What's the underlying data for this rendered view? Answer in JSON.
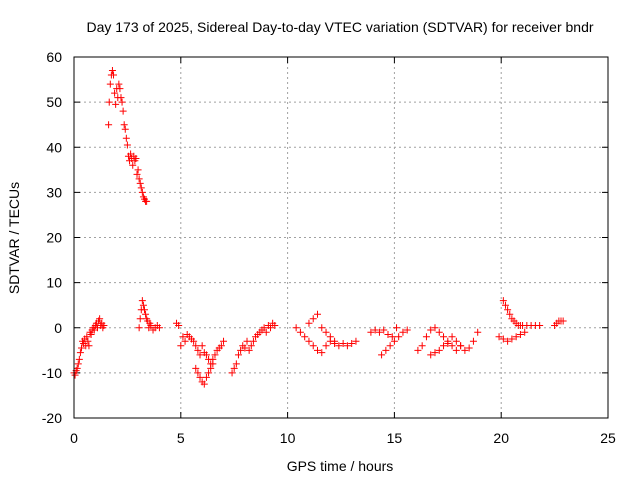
{
  "chart_data": {
    "type": "scatter",
    "title": "Day 173 of 2025, Sidereal Day-to-day VTEC variation (SDTVAR) for receiver bndr",
    "xlabel": "GPS time / hours",
    "ylabel": "SDTVAR / TECUs",
    "xlim": [
      0,
      25
    ],
    "ylim": [
      -20,
      60
    ],
    "xticks": [
      0,
      5,
      10,
      15,
      20,
      25
    ],
    "yticks": [
      -20,
      -10,
      0,
      10,
      20,
      30,
      40,
      50,
      60
    ],
    "grid": true,
    "marker": "+",
    "color": "#ff0000",
    "series": [
      {
        "name": "SDTVAR",
        "x": [
          0.0,
          0.05,
          0.1,
          0.15,
          0.2,
          0.25,
          0.3,
          0.35,
          0.4,
          0.45,
          0.5,
          0.55,
          0.6,
          0.65,
          0.7,
          0.75,
          0.8,
          0.85,
          0.9,
          0.95,
          1.0,
          1.05,
          1.1,
          1.15,
          1.2,
          1.25,
          1.3,
          1.35,
          1.4,
          1.62,
          1.65,
          1.7,
          1.75,
          1.8,
          1.85,
          1.9,
          1.95,
          2.0,
          2.05,
          2.1,
          2.15,
          2.2,
          2.25,
          2.3,
          2.35,
          2.4,
          2.45,
          2.5,
          2.55,
          2.6,
          2.65,
          2.7,
          2.75,
          2.8,
          2.85,
          2.9,
          2.95,
          3.0,
          3.05,
          3.1,
          3.15,
          3.2,
          3.25,
          3.3,
          3.35,
          3.4,
          3.05,
          3.1,
          3.15,
          3.2,
          3.25,
          3.3,
          3.35,
          3.4,
          3.45,
          3.5,
          3.55,
          3.6,
          3.7,
          3.8,
          3.9,
          4.0,
          4.8,
          4.9,
          5.0,
          5.1,
          5.2,
          5.3,
          5.4,
          5.5,
          5.6,
          5.7,
          5.8,
          5.9,
          6.0,
          6.1,
          6.2,
          6.3,
          6.4,
          6.5,
          6.6,
          6.7,
          6.8,
          6.9,
          7.0,
          5.7,
          5.8,
          5.9,
          6.0,
          6.1,
          6.2,
          6.3,
          6.4,
          6.5,
          7.4,
          7.5,
          7.6,
          7.7,
          7.8,
          7.9,
          8.0,
          8.1,
          8.2,
          8.3,
          8.4,
          8.5,
          8.6,
          8.7,
          8.8,
          8.9,
          9.0,
          9.1,
          9.2,
          9.3,
          9.4,
          10.4,
          10.6,
          10.8,
          11.0,
          11.2,
          11.4,
          11.6,
          11.8,
          12.0,
          12.2,
          12.4,
          12.6,
          12.8,
          13.0,
          13.2,
          11.0,
          11.2,
          11.4,
          11.6,
          11.8,
          12.0,
          12.2,
          13.9,
          14.1,
          14.3,
          14.5,
          14.7,
          14.9,
          15.1,
          14.4,
          14.6,
          14.8,
          15.0,
          15.2,
          15.4,
          15.6,
          16.1,
          16.3,
          16.5,
          16.7,
          16.9,
          17.1,
          17.3,
          17.5,
          17.7,
          17.9,
          18.1,
          16.7,
          16.9,
          17.1,
          17.3,
          17.5,
          17.7,
          17.9,
          18.1,
          18.3,
          18.5,
          18.7,
          18.9,
          19.9,
          20.1,
          20.3,
          20.5,
          20.7,
          20.9,
          21.1,
          20.1,
          20.2,
          20.3,
          20.4,
          20.5,
          20.6,
          20.7,
          20.8,
          20.9,
          21.0,
          21.2,
          21.4,
          21.6,
          21.8,
          22.5,
          22.6,
          22.7,
          22.8,
          22.9
        ],
        "y": [
          -10,
          -10.5,
          -9.5,
          -9,
          -8,
          -7,
          -5.5,
          -4.5,
          -3,
          -3.5,
          -2.5,
          -4,
          -2,
          -3,
          -4,
          -1,
          -1.5,
          -0.5,
          0,
          -0.5,
          0.5,
          1,
          0,
          1.5,
          2,
          0.5,
          1,
          0,
          0.5,
          45,
          50,
          54,
          56,
          57,
          56,
          52,
          49.5,
          53,
          51,
          54,
          53,
          51,
          50,
          48,
          45,
          44,
          42,
          40.5,
          38,
          37,
          38.5,
          37.5,
          36,
          38,
          37,
          37.5,
          34,
          35,
          33,
          32,
          31,
          30,
          29,
          28.5,
          28,
          28,
          0,
          2,
          4,
          6,
          5,
          4,
          3,
          2,
          1.5,
          0,
          1,
          0.5,
          -0.5,
          0,
          0.5,
          0,
          1,
          0.5,
          -4,
          -2,
          -3,
          -1.5,
          -2,
          -2.5,
          -3,
          -4,
          -5,
          -6,
          -4,
          -5.5,
          -6,
          -7,
          -8,
          -7,
          -6,
          -5,
          -4.5,
          -4,
          -3,
          -9,
          -10,
          -11,
          -12,
          -12.5,
          -11,
          -10,
          -9,
          -8,
          -10,
          -9,
          -8,
          -6,
          -5,
          -4,
          -4.5,
          -3,
          -5,
          -4,
          -3,
          -2,
          -1.5,
          -1,
          -0.5,
          0,
          -1,
          0.5,
          0,
          1,
          0.5,
          0,
          -1,
          -2,
          -3,
          -4,
          -5,
          -5.5,
          -4,
          -3,
          -3.5,
          -4,
          -3.5,
          -4,
          -3.5,
          -3,
          1,
          2,
          3,
          0,
          -1,
          -2,
          -3,
          -1,
          -0.5,
          -1,
          -0.5,
          -1.5,
          -2,
          0,
          -6,
          -5,
          -4,
          -3,
          -2,
          -1,
          -0.5,
          -5,
          -4,
          -2,
          -0.5,
          0,
          -1,
          -2,
          -3,
          -4,
          -5,
          -4,
          -6,
          -5.5,
          -5,
          -4,
          -3.5,
          -2,
          -3,
          -4,
          -5,
          -4.5,
          -3,
          -1,
          -2,
          -2.5,
          -3,
          -2.5,
          -2,
          -1.5,
          -1,
          6,
          5,
          4,
          3,
          2,
          1.5,
          1,
          0.5,
          0.5,
          0.5,
          0.5,
          0.5,
          0.5,
          0.5,
          0.5,
          1,
          1.5,
          1.5,
          1.5
        ]
      }
    ]
  }
}
